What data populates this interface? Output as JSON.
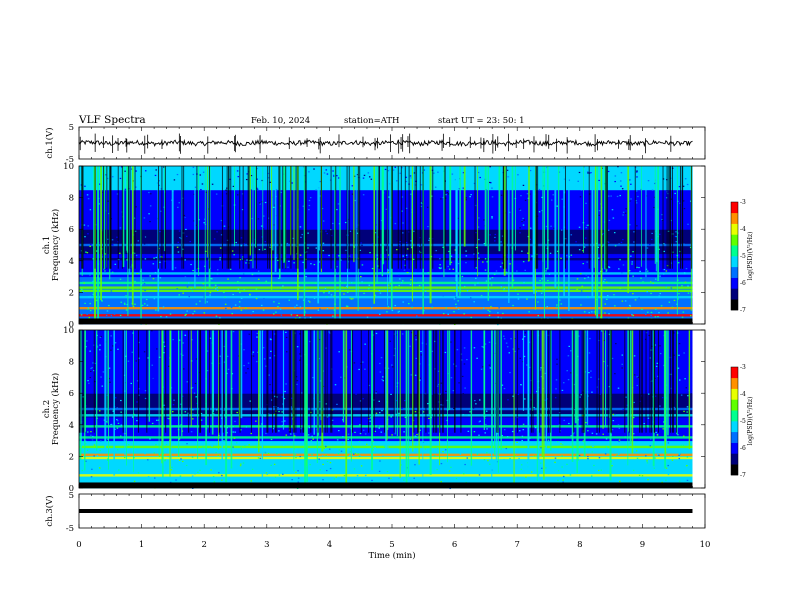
{
  "header": {
    "title": "VLF Spectra",
    "date": "Feb. 10, 2024",
    "station": "station=ATH",
    "start": "start UT = 23: 50: 1"
  },
  "colors": {
    "scale": [
      "#000000",
      "#00007a",
      "#0000ff",
      "#0070ff",
      "#00d8ff",
      "#00ff90",
      "#60ff00",
      "#e8ff00",
      "#ff9000",
      "#ff0000",
      "#ffffff"
    ]
  },
  "chart_data": [
    {
      "type": "line",
      "name": "ch1-waveform",
      "ylabel": "ch.1(V)",
      "ylim": [
        -5,
        5
      ],
      "yticks": [
        "5",
        "-5"
      ],
      "xlim": [
        0,
        10
      ],
      "baseline": 0
    },
    {
      "type": "heatmap",
      "name": "ch1-spectrogram",
      "ylabel_line1": "ch.1",
      "ylabel_line2": "Frequency (kHz)",
      "ylim": [
        0,
        10
      ],
      "yticks": [
        "0",
        "2",
        "4",
        "6",
        "8",
        "10"
      ],
      "xlim": [
        0,
        10
      ],
      "colorbar": {
        "label": "log(PSD)(V²/Hz)",
        "range": [
          -7,
          -3
        ],
        "ticks": [
          "-3",
          "-4",
          "-5",
          "-6",
          "-7"
        ]
      },
      "bands_khz": [
        {
          "f": 0.1,
          "level": 9
        },
        {
          "f": 0.55,
          "level": 9
        },
        {
          "f": 1.0,
          "level": 8
        },
        {
          "f": 1.7,
          "level": 4
        },
        {
          "f": 2.1,
          "level": 6
        },
        {
          "f": 2.3,
          "level": 6
        },
        {
          "f": 2.6,
          "level": 5
        },
        {
          "f": 3.2,
          "level": 4
        },
        {
          "f": 4.1,
          "level": 1
        },
        {
          "f": 4.5,
          "level": 1
        },
        {
          "f": 5.0,
          "level": 3
        }
      ]
    },
    {
      "type": "heatmap",
      "name": "ch2-spectrogram",
      "ylabel_line1": "ch.2",
      "ylabel_line2": "Frequency (kHz)",
      "ylim": [
        0,
        10
      ],
      "yticks": [
        "0",
        "2",
        "4",
        "6",
        "8",
        "10"
      ],
      "xlim": [
        0,
        10
      ],
      "colorbar": {
        "label": "log(PSD)(V²/Hz)",
        "range": [
          -7,
          -3
        ],
        "ticks": [
          "-3",
          "-4",
          "-5",
          "-6",
          "-7"
        ]
      },
      "bands_khz": [
        {
          "f": 0.1,
          "level": 9
        },
        {
          "f": 0.8,
          "level": 7
        },
        {
          "f": 1.9,
          "level": 7
        },
        {
          "f": 2.1,
          "level": 8
        },
        {
          "f": 2.6,
          "level": 6
        },
        {
          "f": 3.2,
          "level": 5
        },
        {
          "f": 3.9,
          "level": 5
        },
        {
          "f": 4.6,
          "level": 4
        },
        {
          "f": 5.0,
          "level": 3
        }
      ]
    },
    {
      "type": "line",
      "name": "ch3-waveform",
      "ylabel": "ch.3(V)",
      "ylim": [
        -5,
        5
      ],
      "yticks": [
        "5",
        "-5"
      ],
      "xlim": [
        0,
        10
      ],
      "baseline": 0,
      "xlabel": "Time (min)",
      "xticks": [
        "0",
        "1",
        "2",
        "3",
        "4",
        "5",
        "6",
        "7",
        "8",
        "9",
        "10"
      ]
    }
  ]
}
